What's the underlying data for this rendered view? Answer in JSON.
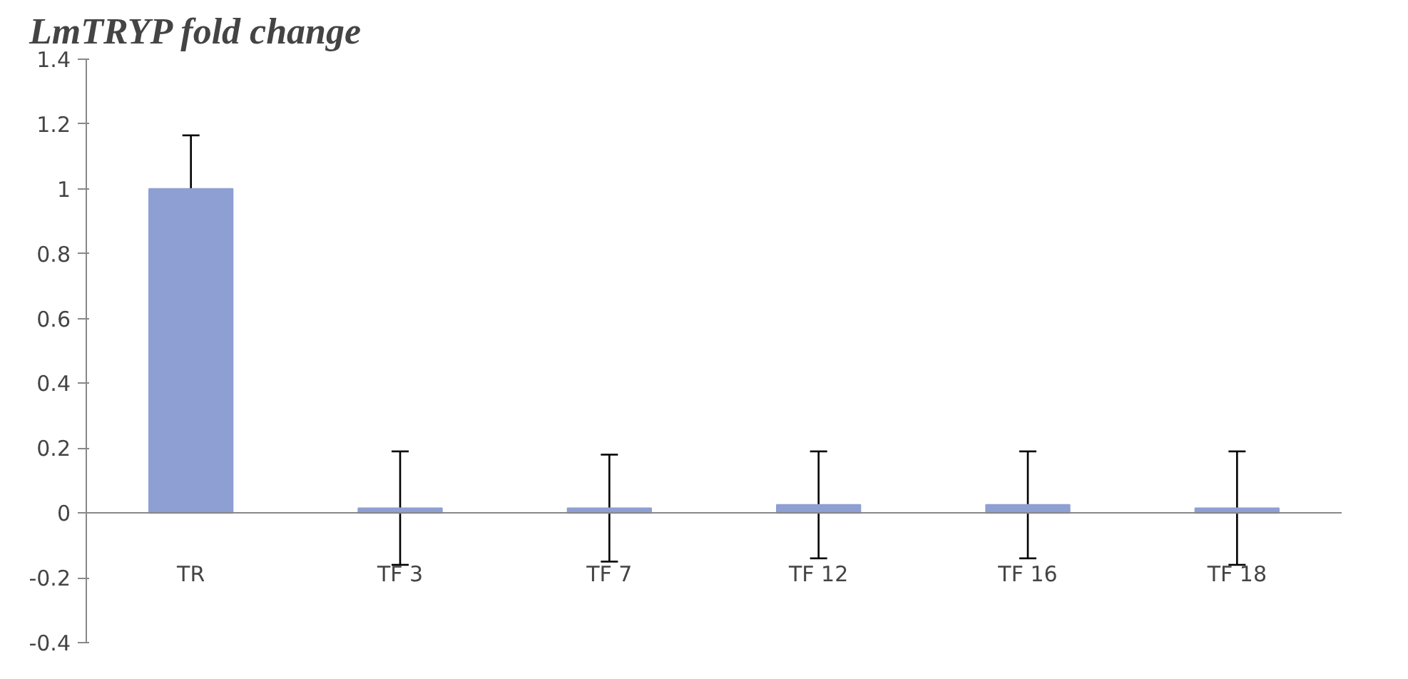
{
  "chart_data": {
    "type": "bar",
    "title": "LmTRYP fold change",
    "categories": [
      "TR",
      "TF 3",
      "TF 7",
      "TF 12",
      "TF 16",
      "TF 18"
    ],
    "values": [
      1.0,
      0.015,
      0.015,
      0.025,
      0.025,
      0.015
    ],
    "errors": [
      0.165,
      0.175,
      0.165,
      0.165,
      0.165,
      0.175
    ],
    "color": "#8e9fd3",
    "ylim": [
      -0.4,
      1.4
    ],
    "yticks": [
      -0.4,
      -0.2,
      0,
      0.2,
      0.4,
      0.6,
      0.8,
      1,
      1.2,
      1.4
    ],
    "grid": false
  }
}
